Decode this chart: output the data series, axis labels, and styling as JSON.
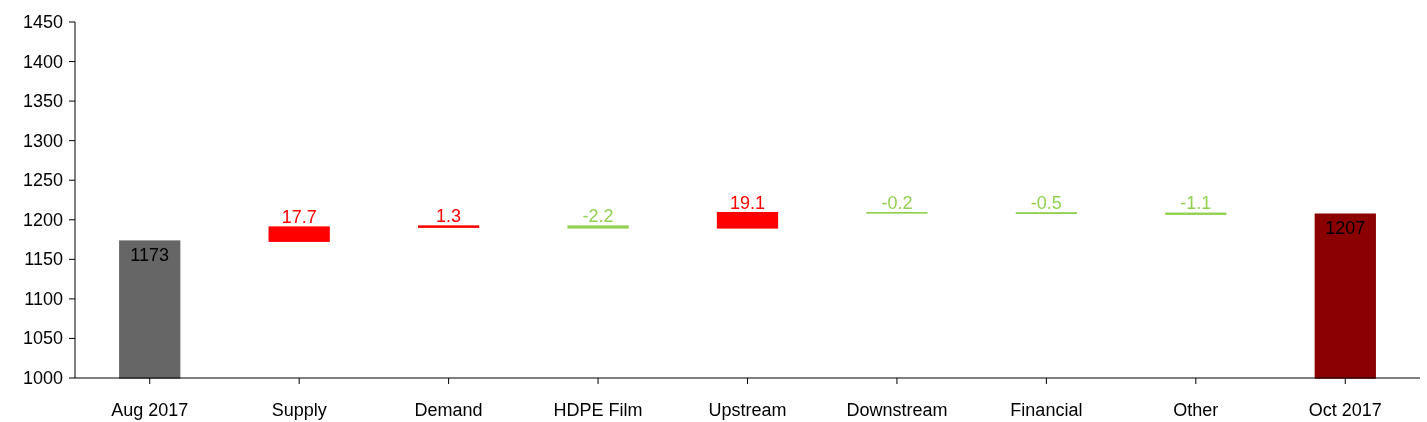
{
  "chart_data": {
    "type": "bar",
    "categories": [
      "Aug 2017",
      "Supply",
      "Demand",
      "HDPE Film",
      "Upstream",
      "Downstream",
      "Financial",
      "Other",
      "Oct 2017"
    ],
    "base": [
      1000,
      1173,
      1190.7,
      1192,
      1189.8,
      1208.9,
      1208.7,
      1208.2,
      1000
    ],
    "values": [
      173,
      17.7,
      1.3,
      -2.2,
      19.1,
      -0.2,
      -0.5,
      -1.1,
      207
    ],
    "colors": [
      "#666666",
      "#ff0000",
      "#ff0000",
      "#92d050",
      "#ff0000",
      "#92d050",
      "#92d050",
      "#92d050",
      "#8b0000"
    ],
    "value_labels": [
      "1173",
      "17.7",
      "1.3",
      "-2.2",
      "19.1",
      "-0.2",
      "-0.5",
      "-1.1",
      "1207"
    ],
    "ylim": [
      1000,
      1450
    ],
    "yticks": [
      1000,
      1050,
      1100,
      1150,
      1200,
      1250,
      1300,
      1350,
      1400,
      1450
    ],
    "grid": false
  }
}
